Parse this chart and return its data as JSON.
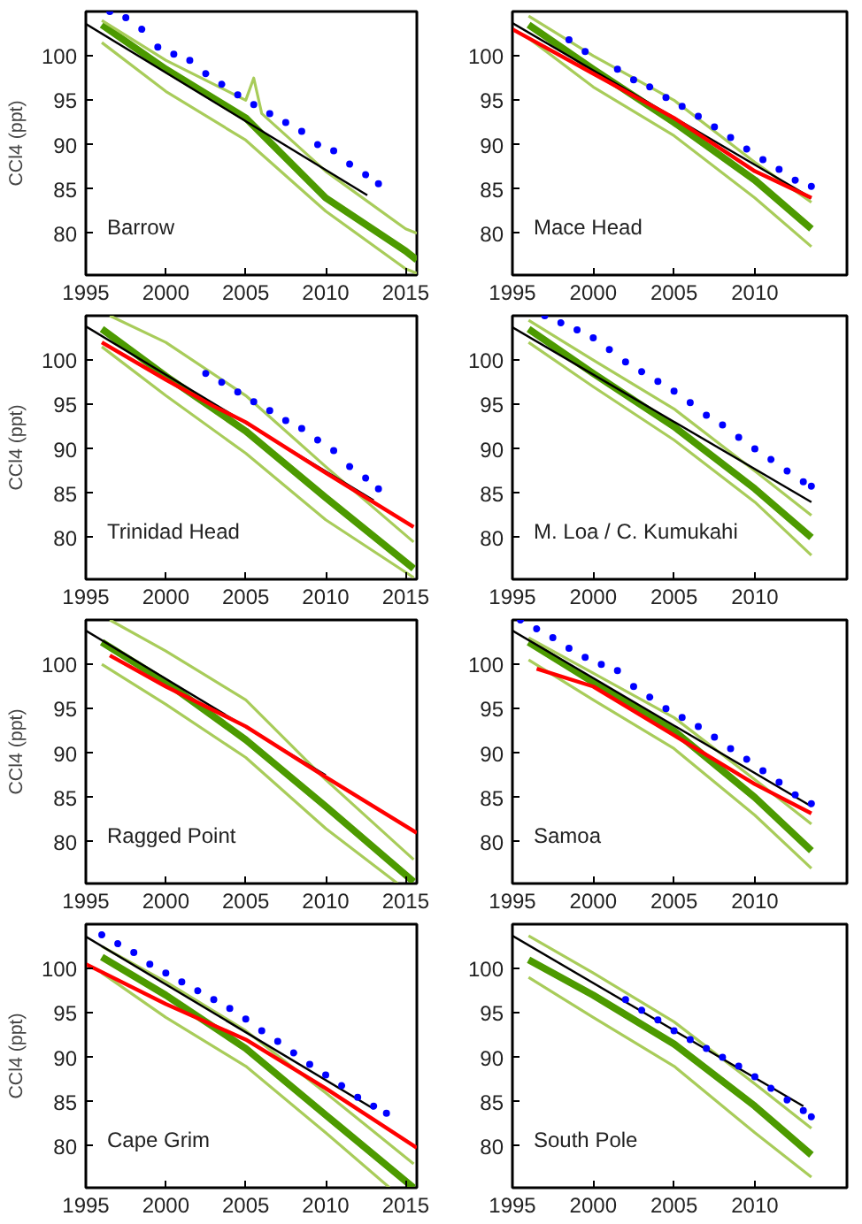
{
  "chart_data": [
    {
      "type": "line",
      "ylabel": "CCl4 (ppt)",
      "annotations": [
        "Barrow"
      ],
      "xlim": [
        1995,
        2015.7
      ],
      "ylim": [
        75.3,
        105
      ],
      "xticks": [
        1995,
        2000,
        2005,
        2010,
        2015
      ],
      "yticks": [
        80,
        85,
        90,
        95,
        100
      ],
      "grid": false,
      "series": [
        {
          "color": "#4c9a00",
          "x": [
            1996,
            2000,
            2005,
            2010,
            2015,
            2015.7
          ],
          "values": [
            103.5,
            98.5,
            93,
            84,
            78,
            77
          ]
        },
        {
          "color": "#a8cc5a",
          "x": [
            1996,
            2000,
            2005,
            2005.5,
            2006,
            2010,
            2015,
            2015.7
          ],
          "values": [
            104,
            99.5,
            95,
            97.5,
            93.5,
            87,
            80.5,
            80
          ]
        },
        {
          "color": "#a8cc5a",
          "x": [
            1996,
            2000,
            2005,
            2010,
            2015,
            2015.7
          ],
          "values": [
            101.5,
            96,
            90.5,
            82.5,
            76,
            75.5
          ]
        },
        {
          "color": "#000000",
          "x": [
            1995,
            2012.6
          ],
          "values": [
            103.6,
            84.3
          ]
        },
        {
          "type": "scatter",
          "marker": "circle",
          "color": "#0000ff",
          "x": [
            1996.5,
            1997.5,
            1998.5,
            1999.5,
            2000.5,
            2001.5,
            2002.5,
            2003.5,
            2004.5,
            2005.5,
            2006.5,
            2007.5,
            2008.5,
            2009.5,
            2010.5,
            2011.5,
            2012.5,
            2013.3
          ],
          "values": [
            105,
            104.3,
            103,
            101,
            100.2,
            99.5,
            98,
            96.8,
            95.6,
            94.5,
            93.5,
            92.5,
            91.5,
            90,
            89.3,
            87.8,
            86.6,
            85.6
          ]
        }
      ]
    },
    {
      "type": "line",
      "annotations": [
        "Mace Head"
      ],
      "xlim": [
        1995,
        2015.7
      ],
      "ylim": [
        75.3,
        105
      ],
      "xticks": [
        1995,
        2000,
        2005,
        2010
      ],
      "yticks": [
        80,
        85,
        90,
        95,
        100
      ],
      "grid": false,
      "series": [
        {
          "color": "#4c9a00",
          "x": [
            1996,
            2000,
            2005,
            2010,
            2013.5
          ],
          "values": [
            103.5,
            98.5,
            92.5,
            86,
            80.5
          ]
        },
        {
          "color": "#a8cc5a",
          "x": [
            1996,
            2000,
            2005,
            2010,
            2013.5
          ],
          "values": [
            104.5,
            100,
            95,
            88,
            83.5
          ]
        },
        {
          "color": "#a8cc5a",
          "x": [
            1996,
            2000,
            2005,
            2010,
            2013.5
          ],
          "values": [
            102,
            96.5,
            91,
            84,
            78.5
          ]
        },
        {
          "color": "#000000",
          "x": [
            1995,
            2013.5
          ],
          "values": [
            103.7,
            84
          ]
        },
        {
          "color": "#ff0000",
          "x": [
            1995,
            2000,
            2005,
            2010,
            2013.5
          ],
          "values": [
            103,
            98,
            93,
            87,
            84
          ]
        },
        {
          "type": "scatter",
          "marker": "circle",
          "color": "#0000ff",
          "x": [
            1998.5,
            1999.5,
            2001.5,
            2002.5,
            2003.5,
            2004.5,
            2005.5,
            2006.5,
            2007.5,
            2008.5,
            2009.5,
            2010.5,
            2011.5,
            2012.5,
            2013.5
          ],
          "values": [
            101.8,
            100.5,
            98.5,
            97.3,
            96.5,
            95.3,
            94.3,
            93.2,
            92,
            90.8,
            89.5,
            88.3,
            87.2,
            86,
            85.3
          ]
        }
      ]
    },
    {
      "type": "line",
      "ylabel": "CCl4 (ppt)",
      "annotations": [
        "Trinidad Head"
      ],
      "xlim": [
        1995,
        2015.7
      ],
      "ylim": [
        75.3,
        105
      ],
      "xticks": [
        1995,
        2000,
        2005,
        2010,
        2015
      ],
      "yticks": [
        80,
        85,
        90,
        95,
        100
      ],
      "grid": false,
      "series": [
        {
          "color": "#4c9a00",
          "x": [
            1996,
            2000,
            2005,
            2010,
            2015.5
          ],
          "values": [
            103.5,
            98.2,
            92,
            84.5,
            76.5
          ]
        },
        {
          "color": "#a8cc5a",
          "x": [
            1996.5,
            2000,
            2005,
            2010,
            2015.5
          ],
          "values": [
            105,
            102,
            96,
            88,
            79.5
          ]
        },
        {
          "color": "#a8cc5a",
          "x": [
            1996,
            2000,
            2005,
            2010,
            2015.5
          ],
          "values": [
            101.5,
            96,
            89.5,
            82,
            75.5
          ]
        },
        {
          "color": "#000000",
          "x": [
            1995,
            2013
          ],
          "values": [
            103.8,
            84.2
          ]
        },
        {
          "color": "#ff0000",
          "x": [
            1996,
            2000,
            2003,
            2005,
            2010,
            2015.5
          ],
          "values": [
            102,
            97.8,
            94.8,
            93,
            87.3,
            81.2
          ]
        },
        {
          "type": "scatter",
          "marker": "circle",
          "color": "#0000ff",
          "x": [
            2002.5,
            2003.5,
            2004.5,
            2005.5,
            2006.5,
            2007.5,
            2008.5,
            2009.5,
            2010.5,
            2011.5,
            2012.5,
            2013.3
          ],
          "values": [
            98.5,
            97.5,
            96.4,
            95.3,
            94.3,
            93.2,
            92.3,
            91,
            89.8,
            88,
            86.7,
            85.5
          ]
        }
      ]
    },
    {
      "type": "line",
      "annotations": [
        "M. Loa / C. Kumukahi"
      ],
      "xlim": [
        1995,
        2015.7
      ],
      "ylim": [
        75.3,
        105
      ],
      "xticks": [
        1995,
        2000,
        2005,
        2010
      ],
      "yticks": [
        80,
        85,
        90,
        95,
        100
      ],
      "grid": false,
      "series": [
        {
          "color": "#4c9a00",
          "x": [
            1996,
            2000,
            2005,
            2010,
            2013.5
          ],
          "values": [
            103.5,
            98.5,
            92.5,
            85.5,
            80
          ]
        },
        {
          "color": "#a8cc5a",
          "x": [
            1996,
            2000,
            2005,
            2010,
            2013.5
          ],
          "values": [
            104.5,
            100,
            94.5,
            87.5,
            82.5
          ]
        },
        {
          "color": "#a8cc5a",
          "x": [
            1996,
            2000,
            2005,
            2010,
            2013.5
          ],
          "values": [
            102,
            97,
            91,
            84,
            78
          ]
        },
        {
          "color": "#000000",
          "x": [
            1995,
            2013.5
          ],
          "values": [
            103.7,
            84
          ]
        },
        {
          "type": "scatter",
          "marker": "circle",
          "color": "#0000ff",
          "x": [
            1997,
            1998,
            1999,
            2000,
            2001,
            2002,
            2003,
            2004,
            2005,
            2006,
            2007,
            2008,
            2009,
            2010,
            2011,
            2012,
            2013,
            2013.5
          ],
          "values": [
            105,
            104.2,
            103.4,
            102.5,
            101.2,
            99.8,
            98.7,
            97.6,
            96.5,
            95.2,
            93.8,
            92.7,
            91.3,
            90,
            88.8,
            87.5,
            86.3,
            85.8
          ]
        }
      ]
    },
    {
      "type": "line",
      "ylabel": "CCl4 (ppt)",
      "annotations": [
        "Ragged Point"
      ],
      "xlim": [
        1995,
        2015.7
      ],
      "ylim": [
        75.3,
        105
      ],
      "xticks": [
        1995,
        2000,
        2005,
        2010,
        2015
      ],
      "yticks": [
        80,
        85,
        90,
        95,
        100
      ],
      "grid": false,
      "series": [
        {
          "color": "#4c9a00",
          "x": [
            1996,
            2000,
            2005,
            2010,
            2015.5
          ],
          "values": [
            102.5,
            98,
            91.5,
            84,
            75.5
          ]
        },
        {
          "color": "#a8cc5a",
          "x": [
            1996.5,
            2000,
            2005,
            2010,
            2015.5
          ],
          "values": [
            105,
            101.5,
            96,
            87,
            78
          ]
        },
        {
          "color": "#a8cc5a",
          "x": [
            1996,
            2000,
            2005,
            2010,
            2014.5
          ],
          "values": [
            100,
            95.5,
            89.5,
            81.5,
            75.3
          ]
        },
        {
          "color": "#000000",
          "x": [
            1995,
            2010
          ],
          "values": [
            103.8,
            87.5
          ]
        },
        {
          "color": "#ff0000",
          "x": [
            1996.5,
            2000,
            2005,
            2010,
            2015.7
          ],
          "values": [
            101,
            97.5,
            93,
            87.3,
            81
          ]
        }
      ]
    },
    {
      "type": "line",
      "annotations": [
        "Samoa"
      ],
      "xlim": [
        1995,
        2015.7
      ],
      "ylim": [
        75.3,
        105
      ],
      "xticks": [
        1995,
        2000,
        2005,
        2010
      ],
      "yticks": [
        80,
        85,
        90,
        95,
        100
      ],
      "grid": false,
      "series": [
        {
          "color": "#4c9a00",
          "x": [
            1996,
            2000,
            2005,
            2010,
            2013.5
          ],
          "values": [
            102.5,
            98,
            92.5,
            85,
            79
          ]
        },
        {
          "color": "#a8cc5a",
          "x": [
            1996,
            2000,
            2005,
            2010,
            2013.5
          ],
          "values": [
            103,
            99,
            94,
            87,
            82
          ]
        },
        {
          "color": "#a8cc5a",
          "x": [
            1996,
            2000,
            2005,
            2010,
            2013.5
          ],
          "values": [
            100.5,
            96,
            90.5,
            83,
            77
          ]
        },
        {
          "color": "#000000",
          "x": [
            1995,
            2013.5
          ],
          "values": [
            103.8,
            84
          ]
        },
        {
          "color": "#ff0000",
          "x": [
            1996.5,
            2000,
            2005,
            2010,
            2013.5
          ],
          "values": [
            99.5,
            97.5,
            92,
            86.5,
            83.2
          ]
        },
        {
          "type": "scatter",
          "marker": "circle",
          "color": "#0000ff",
          "x": [
            1995.5,
            1996.5,
            1997.5,
            1998.5,
            1999.5,
            2000.5,
            2001.5,
            2002.5,
            2003.5,
            2004.5,
            2005.5,
            2006.5,
            2007.5,
            2008.5,
            2009.5,
            2010.5,
            2011.5,
            2012.5,
            2013.5
          ],
          "values": [
            105,
            104,
            103,
            101.8,
            100.8,
            100,
            99.3,
            97.5,
            96.3,
            95,
            94,
            93,
            91.8,
            90.5,
            89.3,
            88,
            86.7,
            85.3,
            84.3
          ]
        }
      ]
    },
    {
      "type": "line",
      "ylabel": "CCl4 (ppt)",
      "annotations": [
        "Cape Grim"
      ],
      "xlim": [
        1995,
        2015.7
      ],
      "ylim": [
        75.3,
        105
      ],
      "xticks": [
        1995,
        2000,
        2005,
        2010,
        2015
      ],
      "yticks": [
        80,
        85,
        90,
        95,
        100
      ],
      "grid": false,
      "series": [
        {
          "color": "#4c9a00",
          "x": [
            1996,
            2000,
            2005,
            2010,
            2015.5
          ],
          "values": [
            101.3,
            97,
            91,
            83.5,
            75.3
          ]
        },
        {
          "color": "#a8cc5a",
          "x": [
            1996,
            2000,
            2005,
            2010,
            2015.5
          ],
          "values": [
            102.5,
            98.5,
            93,
            86,
            78
          ]
        },
        {
          "color": "#a8cc5a",
          "x": [
            1996,
            2000,
            2005,
            2010,
            2014
          ],
          "values": [
            99.5,
            94.5,
            89,
            81.5,
            75.3
          ]
        },
        {
          "color": "#000000",
          "x": [
            1995,
            2013
          ],
          "values": [
            103.6,
            84.2
          ]
        },
        {
          "color": "#ff0000",
          "x": [
            1995,
            2000,
            2005,
            2010,
            2015.7
          ],
          "values": [
            100.5,
            96,
            92,
            86.5,
            79.8
          ]
        },
        {
          "type": "scatter",
          "marker": "circle",
          "color": "#0000ff",
          "x": [
            1996,
            1997,
            1998,
            1999,
            2000,
            2001,
            2002,
            2003,
            2004,
            2005,
            2006,
            2007,
            2008,
            2009,
            2010,
            2011,
            2012,
            2013,
            2013.8
          ],
          "values": [
            103.8,
            102.8,
            101.8,
            100.5,
            99.5,
            98.5,
            97.5,
            96.5,
            95.5,
            94.3,
            93,
            91.8,
            90.5,
            89.2,
            88,
            86.8,
            85.5,
            84.5,
            83.7
          ]
        }
      ]
    },
    {
      "type": "line",
      "annotations": [
        "South Pole"
      ],
      "xlim": [
        1995,
        2015.7
      ],
      "ylim": [
        75.3,
        105
      ],
      "xticks": [
        1995,
        2000,
        2005,
        2010
      ],
      "yticks": [
        80,
        85,
        90,
        95,
        100
      ],
      "grid": false,
      "series": [
        {
          "color": "#4c9a00",
          "x": [
            1996,
            2000,
            2005,
            2010,
            2013.5
          ],
          "values": [
            101,
            97,
            91.5,
            84.5,
            79
          ]
        },
        {
          "color": "#a8cc5a",
          "x": [
            1996,
            2000,
            2005,
            2010,
            2013.5
          ],
          "values": [
            103.7,
            99.5,
            94,
            87,
            82
          ]
        },
        {
          "color": "#a8cc5a",
          "x": [
            1996,
            2000,
            2005,
            2010,
            2013.5
          ],
          "values": [
            99,
            94.5,
            89,
            81.5,
            76.5
          ]
        },
        {
          "color": "#000000",
          "x": [
            1995,
            2013
          ],
          "values": [
            103.7,
            84.5
          ]
        },
        {
          "type": "scatter",
          "marker": "circle",
          "color": "#0000ff",
          "x": [
            2002,
            2003,
            2004,
            2005,
            2006,
            2007,
            2008,
            2009,
            2010,
            2011,
            2012,
            2013,
            2013.5
          ],
          "values": [
            96.5,
            95.3,
            94.2,
            93,
            92,
            91,
            90,
            89,
            87.8,
            86.5,
            85.2,
            84,
            83.3
          ]
        }
      ]
    }
  ]
}
